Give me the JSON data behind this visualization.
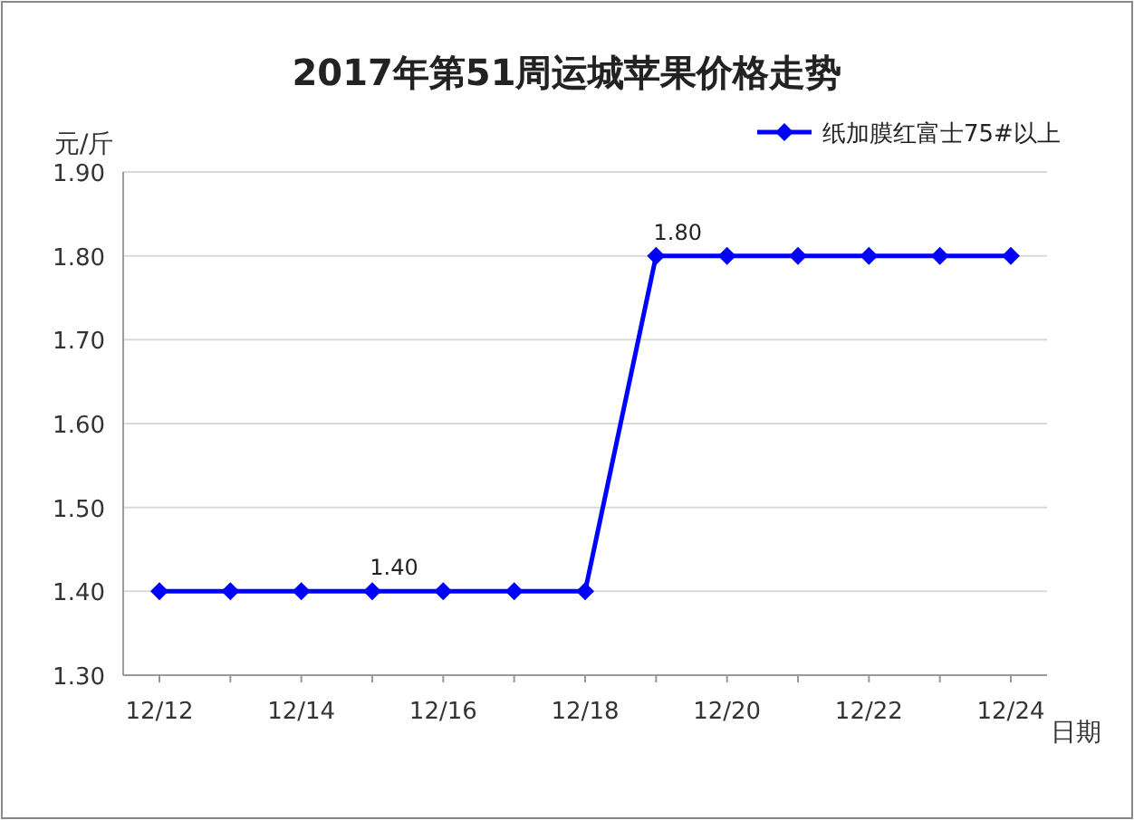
{
  "chart_data": {
    "type": "line",
    "title": "2017年第51周运城苹果价格走势",
    "xlabel": "日期",
    "ylabel": "元/斤",
    "categories": [
      "12/12",
      null,
      "12/14",
      null,
      "12/16",
      null,
      "12/18",
      null,
      "12/20",
      null,
      "12/22",
      null,
      "12/24"
    ],
    "series": [
      {
        "name": "纸加膜红富士75#以上",
        "color": "#0000ff",
        "values": [
          1.4,
          1.4,
          1.4,
          1.4,
          1.4,
          1.4,
          1.4,
          1.8,
          1.8,
          1.8,
          1.8,
          1.8,
          1.8
        ],
        "value_labels": [
          null,
          null,
          null,
          "1.40",
          null,
          null,
          null,
          "1.80",
          null,
          null,
          null,
          null,
          null
        ]
      }
    ],
    "ylim": [
      1.3,
      1.9
    ],
    "yticks": [
      {
        "value": 1.3,
        "label": "1.30"
      },
      {
        "value": 1.4,
        "label": "1.40"
      },
      {
        "value": 1.5,
        "label": "1.50"
      },
      {
        "value": 1.6,
        "label": "1.60"
      },
      {
        "value": 1.7,
        "label": "1.70"
      },
      {
        "value": 1.8,
        "label": "1.80"
      },
      {
        "value": 1.9,
        "label": "1.90"
      }
    ],
    "grid": "y",
    "legend": "top right",
    "marker": "diamond",
    "line_style": "solid"
  }
}
